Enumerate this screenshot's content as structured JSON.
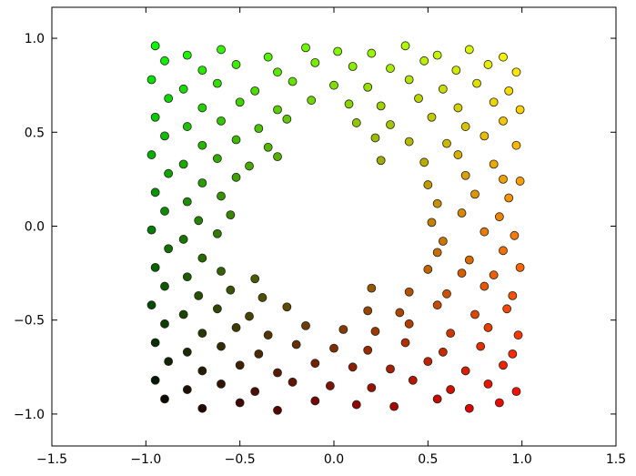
{
  "chart_data": {
    "type": "scatter",
    "x": [
      -0.95,
      -0.78,
      -0.6,
      -0.35,
      -0.15,
      0.02,
      0.2,
      0.38,
      0.55,
      0.72,
      0.9,
      -0.9,
      -0.7,
      -0.52,
      -0.3,
      -0.1,
      0.1,
      0.3,
      0.48,
      0.65,
      0.82,
      0.97,
      -0.97,
      -0.8,
      -0.62,
      -0.42,
      -0.22,
      0.0,
      0.18,
      0.4,
      0.58,
      0.76,
      0.93,
      -0.88,
      -0.7,
      -0.5,
      -0.3,
      -0.12,
      0.08,
      0.25,
      0.45,
      0.66,
      0.85,
      0.99,
      -0.95,
      -0.78,
      -0.6,
      -0.4,
      -0.25,
      0.12,
      0.3,
      0.52,
      0.7,
      0.9,
      -0.9,
      -0.7,
      -0.52,
      -0.35,
      0.22,
      0.4,
      0.6,
      0.8,
      0.97,
      -0.97,
      -0.8,
      -0.62,
      -0.45,
      -0.3,
      0.25,
      0.48,
      0.66,
      0.85,
      -0.88,
      -0.7,
      -0.52,
      0.5,
      0.7,
      0.9,
      0.99,
      -0.95,
      -0.78,
      -0.6,
      0.55,
      0.75,
      0.93,
      -0.9,
      -0.72,
      -0.55,
      0.52,
      0.68,
      0.88,
      -0.97,
      -0.8,
      -0.62,
      0.58,
      0.8,
      0.96,
      -0.88,
      -0.7,
      0.55,
      0.72,
      0.9,
      -0.95,
      -0.78,
      -0.6,
      -0.42,
      0.5,
      0.68,
      0.85,
      0.99,
      -0.9,
      -0.72,
      -0.55,
      -0.38,
      0.2,
      0.4,
      0.6,
      0.8,
      0.95,
      -0.97,
      -0.8,
      -0.62,
      -0.45,
      -0.25,
      0.18,
      0.35,
      0.55,
      0.75,
      0.92,
      -0.9,
      -0.7,
      -0.52,
      -0.35,
      -0.15,
      0.05,
      0.22,
      0.4,
      0.62,
      0.82,
      0.98,
      -0.95,
      -0.78,
      -0.6,
      -0.4,
      -0.2,
      0.0,
      0.18,
      0.38,
      0.58,
      0.78,
      0.95,
      -0.88,
      -0.7,
      -0.5,
      -0.3,
      -0.1,
      0.1,
      0.3,
      0.5,
      0.7,
      0.9,
      -0.95,
      -0.78,
      -0.6,
      -0.42,
      -0.22,
      -0.02,
      0.2,
      0.42,
      0.62,
      0.82,
      0.97,
      -0.9,
      -0.7,
      -0.5,
      -0.3,
      -0.1,
      0.12,
      0.32,
      0.55,
      0.72,
      0.88
    ],
    "values": [
      0.96,
      0.91,
      0.94,
      0.9,
      0.95,
      0.93,
      0.92,
      0.96,
      0.91,
      0.94,
      0.9,
      0.88,
      0.83,
      0.86,
      0.82,
      0.87,
      0.85,
      0.84,
      0.88,
      0.83,
      0.86,
      0.82,
      0.78,
      0.73,
      0.76,
      0.72,
      0.77,
      0.75,
      0.74,
      0.78,
      0.73,
      0.76,
      0.72,
      0.68,
      0.63,
      0.66,
      0.62,
      0.67,
      0.65,
      0.64,
      0.68,
      0.63,
      0.66,
      0.62,
      0.58,
      0.53,
      0.56,
      0.52,
      0.57,
      0.55,
      0.54,
      0.58,
      0.53,
      0.56,
      0.48,
      0.43,
      0.46,
      0.42,
      0.47,
      0.45,
      0.44,
      0.48,
      0.43,
      0.38,
      0.33,
      0.36,
      0.32,
      0.37,
      0.35,
      0.34,
      0.38,
      0.33,
      0.28,
      0.23,
      0.26,
      0.22,
      0.27,
      0.25,
      0.24,
      0.18,
      0.13,
      0.16,
      0.12,
      0.17,
      0.15,
      0.08,
      0.03,
      0.06,
      0.02,
      0.07,
      0.05,
      -0.02,
      -0.07,
      -0.04,
      -0.08,
      -0.03,
      -0.05,
      -0.12,
      -0.17,
      -0.14,
      -0.18,
      -0.13,
      -0.22,
      -0.27,
      -0.24,
      -0.28,
      -0.23,
      -0.25,
      -0.26,
      -0.22,
      -0.32,
      -0.37,
      -0.34,
      -0.38,
      -0.33,
      -0.35,
      -0.36,
      -0.32,
      -0.37,
      -0.42,
      -0.47,
      -0.44,
      -0.48,
      -0.43,
      -0.45,
      -0.46,
      -0.42,
      -0.47,
      -0.44,
      -0.52,
      -0.57,
      -0.54,
      -0.58,
      -0.53,
      -0.55,
      -0.56,
      -0.52,
      -0.57,
      -0.54,
      -0.58,
      -0.62,
      -0.67,
      -0.64,
      -0.68,
      -0.63,
      -0.65,
      -0.66,
      -0.62,
      -0.67,
      -0.64,
      -0.68,
      -0.72,
      -0.77,
      -0.74,
      -0.78,
      -0.73,
      -0.75,
      -0.76,
      -0.72,
      -0.77,
      -0.74,
      -0.82,
      -0.87,
      -0.84,
      -0.88,
      -0.83,
      -0.85,
      -0.86,
      -0.82,
      -0.87,
      -0.84,
      -0.88,
      -0.92,
      -0.97,
      -0.94,
      -0.98,
      -0.93,
      -0.95,
      -0.96,
      -0.92,
      -0.97,
      -0.94
    ],
    "xlim": [
      -1.5,
      1.5
    ],
    "ylim": [
      -1.17,
      1.165
    ],
    "xticks": [
      {
        "value": -1.5,
        "label": "−1.5"
      },
      {
        "value": -1.0,
        "label": "−1.0"
      },
      {
        "value": -0.5,
        "label": "−0.5"
      },
      {
        "value": 0,
        "label": "0.0"
      },
      0.5,
      {
        "value": 1.0,
        "label": "1.0"
      },
      1.5
    ],
    "yticks": [
      {
        "value": -1.0,
        "label": "−1.0"
      },
      {
        "value": -0.5,
        "label": "−0.5"
      },
      {
        "value": 0,
        "label": "0.0"
      },
      0.5,
      {
        "value": 1.0,
        "label": "1.0"
      }
    ],
    "grid": false
  }
}
